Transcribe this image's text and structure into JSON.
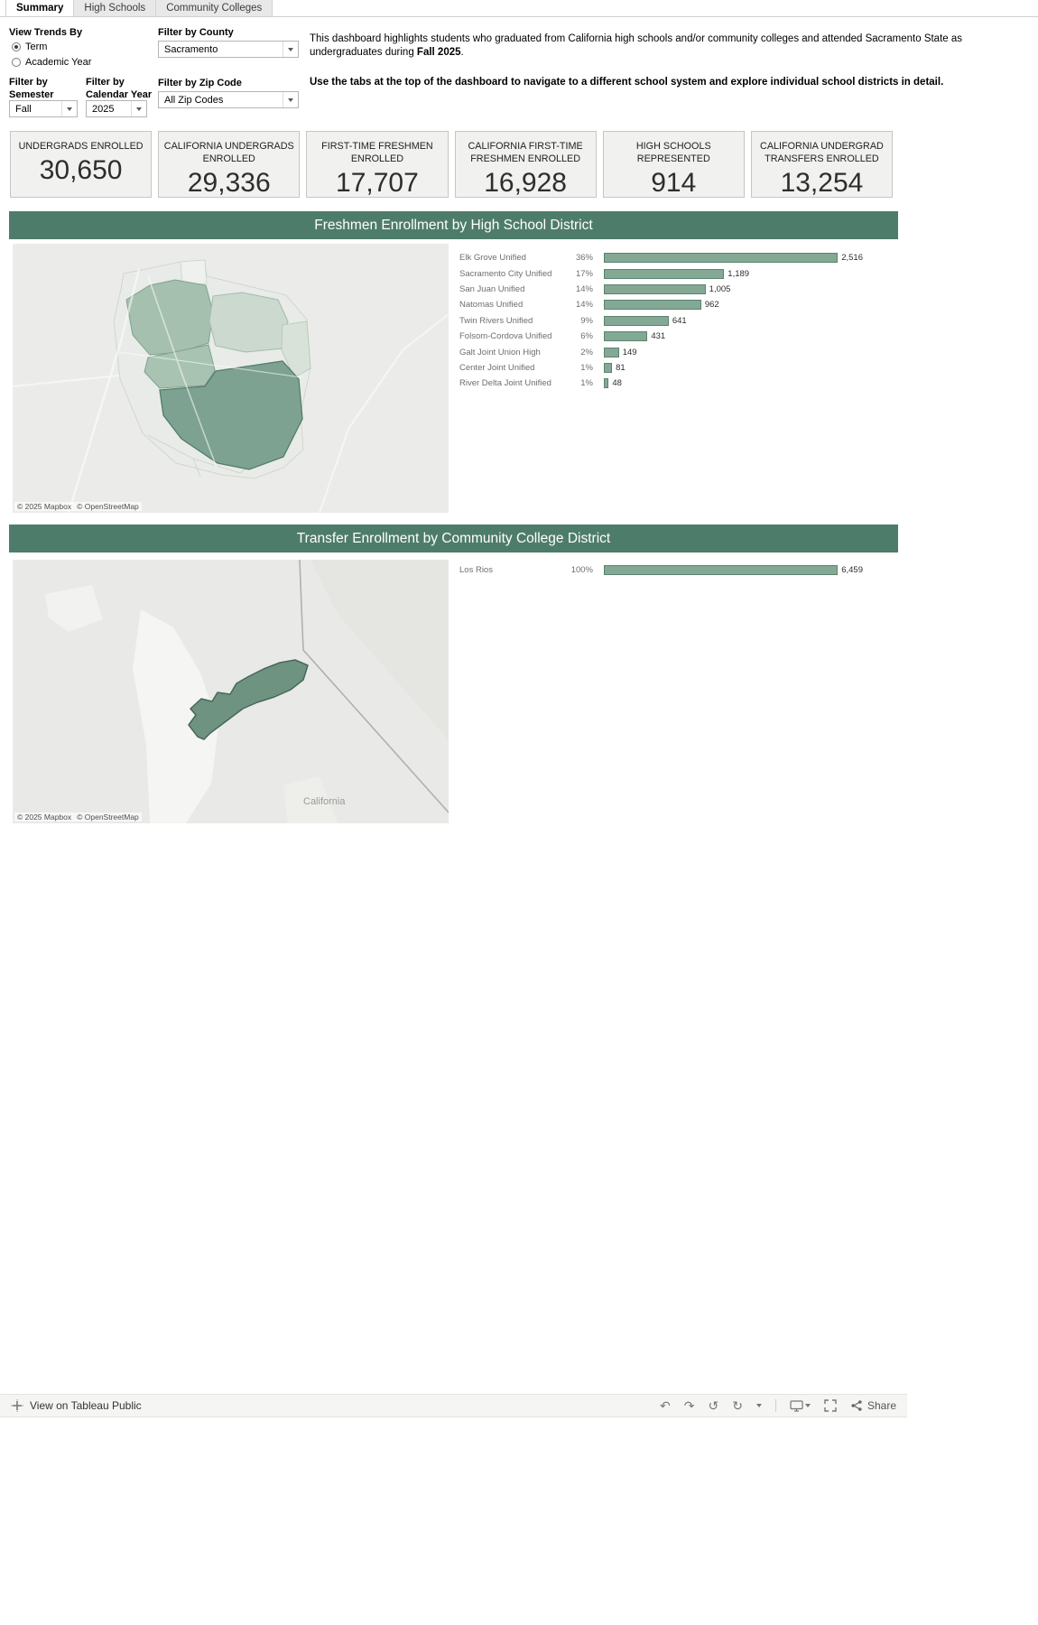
{
  "tabs": [
    {
      "label": "Summary",
      "active": true
    },
    {
      "label": "High Schools",
      "active": false
    },
    {
      "label": "Community Colleges",
      "active": false
    }
  ],
  "filters": {
    "view_trends_label": "View Trends By",
    "trend_options": [
      {
        "label": "Term",
        "selected": true
      },
      {
        "label": "Academic Year",
        "selected": false
      }
    ],
    "semester": {
      "line1": "Filter by",
      "line2": "Semester",
      "value": "Fall"
    },
    "calendar_year": {
      "line1": "Filter by",
      "line2": "Calendar Year",
      "value": "2025"
    },
    "county": {
      "label": "Filter by County",
      "value": "Sacramento"
    },
    "zip": {
      "label": "Filter by Zip Code",
      "value": "All Zip Codes"
    }
  },
  "intro": {
    "p1_before": "This dashboard highlights students who graduated from California high schools and/or community colleges and attended Sacramento State as undergraduates during ",
    "p1_bold": "Fall 2025",
    "p1_after": ".",
    "p2": "Use the tabs at the top of the dashboard to navigate to a different school system and explore individual school districts in detail."
  },
  "kpis": [
    {
      "title": "UNDERGRADS ENROLLED",
      "value": "30,650"
    },
    {
      "title": "CALIFORNIA UNDERGRADS ENROLLED",
      "value": "29,336"
    },
    {
      "title": "FIRST-TIME FRESHMEN ENROLLED",
      "value": "17,707"
    },
    {
      "title": "CALIFORNIA FIRST-TIME FRESHMEN ENROLLED",
      "value": "16,928"
    },
    {
      "title": "HIGH SCHOOLS REPRESENTED",
      "value": "914"
    },
    {
      "title": "CALIFORNIA UNDERGRAD TRANSFERS ENROLLED",
      "value": "13,254"
    }
  ],
  "sections": {
    "freshmen_title": "Freshmen Enrollment by High School District",
    "transfer_title": "Transfer Enrollment by Community College District"
  },
  "maps": {
    "attribution_mapbox": "© 2025 Mapbox",
    "attribution_osm": "© OpenStreetMap",
    "state_label": "California"
  },
  "chart_data": [
    {
      "type": "bar",
      "orientation": "horizontal",
      "title": "Freshmen Enrollment by High School District",
      "scale_max": 2560,
      "categories": [
        "Elk Grove Unified",
        "Sacramento City Unified",
        "San Juan Unified",
        "Natomas Unified",
        "Twin Rivers Unified",
        "Folsom-Cordova Unified",
        "Galt Joint Union High",
        "Center Joint Unified",
        "River Delta Joint Unified"
      ],
      "values": [
        2516,
        1189,
        1005,
        962,
        641,
        431,
        149,
        81,
        48
      ],
      "rows": [
        {
          "label": "Elk Grove Unified",
          "pct": "36%",
          "value": 2516,
          "value_label": "2,516"
        },
        {
          "label": "Sacramento City Unified",
          "pct": "17%",
          "value": 1189,
          "value_label": "1,189"
        },
        {
          "label": "San Juan Unified",
          "pct": "14%",
          "value": 1005,
          "value_label": "1,005"
        },
        {
          "label": "Natomas Unified",
          "pct": "14%",
          "value": 962,
          "value_label": "962"
        },
        {
          "label": "Twin Rivers Unified",
          "pct": "9%",
          "value": 641,
          "value_label": "641"
        },
        {
          "label": "Folsom-Cordova Unified",
          "pct": "6%",
          "value": 431,
          "value_label": "431"
        },
        {
          "label": "Galt Joint Union High",
          "pct": "2%",
          "value": 149,
          "value_label": "149"
        },
        {
          "label": "Center Joint Unified",
          "pct": "1%",
          "value": 81,
          "value_label": "81"
        },
        {
          "label": "River Delta Joint Unified",
          "pct": "1%",
          "value": 48,
          "value_label": "48"
        }
      ]
    },
    {
      "type": "bar",
      "orientation": "horizontal",
      "title": "Transfer Enrollment by Community College District",
      "scale_max": 6800,
      "categories": [
        "Los Rios"
      ],
      "values": [
        6459
      ],
      "rows": [
        {
          "label": "Los Rios",
          "pct": "100%",
          "value": 6459,
          "value_label": "6,459"
        }
      ]
    }
  ],
  "footer": {
    "view_label": "View on Tableau Public",
    "share_label": "Share",
    "icons": {
      "undo": "↶",
      "redo": "↷",
      "replay": "↺",
      "refresh": "↻"
    }
  },
  "colors": {
    "section_header_green": "#4e7c6b",
    "bar_fill": "#83a894",
    "bar_border": "#5c8370",
    "district_dark": "#7da291",
    "district_medium": "#a6c0b0",
    "district_light": "#cbd9cf",
    "kpi_card_bg": "#f1f1ef"
  }
}
